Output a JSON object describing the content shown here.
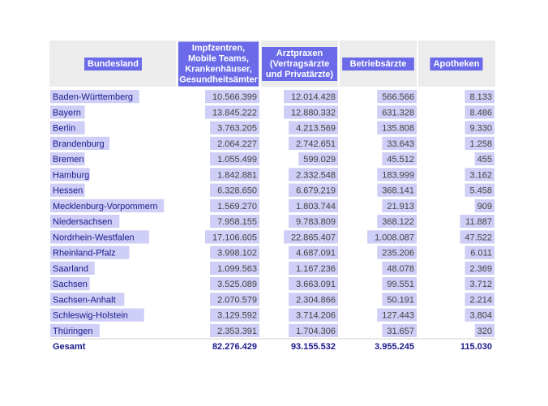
{
  "chart_data": {
    "type": "table",
    "columns": [
      "Bundesland",
      "Impfzentren, Mobile Teams, Krankenhäuser, Gesundheitsämter",
      "Arztpraxen (Vertragsärzte und Privatärzte)",
      "Betriebsärzte",
      "Apotheken"
    ],
    "header_lines": [
      [
        "Bundesland"
      ],
      [
        "Impfzentren,",
        "Mobile Teams,",
        "Krankenhäuser,",
        "Gesundheitsämter"
      ],
      [
        "Arztpraxen",
        "(Vertragsärzte",
        "und Privatärzte)"
      ],
      [
        "Betriebsärzte"
      ],
      [
        "Apotheken"
      ]
    ],
    "rows": [
      [
        "Baden-Württemberg",
        "10.566.399",
        "12.014.428",
        "566.566",
        "8.133"
      ],
      [
        "Bayern",
        "13.845.222",
        "12.880.332",
        "631.328",
        "8.486"
      ],
      [
        "Berlin",
        "3.763.205",
        "4.213.569",
        "135.808",
        "9.330"
      ],
      [
        "Brandenburg",
        "2.064.227",
        "2.742.651",
        "33.643",
        "1.258"
      ],
      [
        "Bremen",
        "1.055.499",
        "599.029",
        "45.512",
        "455"
      ],
      [
        "Hamburg",
        "1.842.881",
        "2.332.548",
        "183.999",
        "3.162"
      ],
      [
        "Hessen",
        "6.328.650",
        "6.679.219",
        "368.141",
        "5.458"
      ],
      [
        "Mecklenburg-Vorpommern",
        "1.569.270",
        "1.803.744",
        "21.913",
        "909"
      ],
      [
        "Niedersachsen",
        "7.958.155",
        "9.783.809",
        "368.122",
        "11.887"
      ],
      [
        "Nordrhein-Westfalen",
        "17.106.605",
        "22.865.407",
        "1.008.087",
        "47.522"
      ],
      [
        "Rheinland-Pfalz",
        "3.998.102",
        "4.687.091",
        "235.206",
        "6.011"
      ],
      [
        "Saarland",
        "1.099.563",
        "1.167.236",
        "48.078",
        "2.369"
      ],
      [
        "Sachsen",
        "3.525.089",
        "3.663.091",
        "99.551",
        "3.712"
      ],
      [
        "Sachsen-Anhalt",
        "2.070.579",
        "2.304.866",
        "50.191",
        "2.214"
      ],
      [
        "Schleswig-Holstein",
        "3.129.592",
        "3.714.206",
        "127.443",
        "3.804"
      ],
      [
        "Thüringen",
        "2.353.391",
        "1.704.306",
        "31.657",
        "320"
      ]
    ],
    "total_row": [
      "Gesamt",
      "82.276.429",
      "93.155.532",
      "3.955.245",
      "115.030"
    ],
    "colors": {
      "header_bg": "#ececec",
      "label_highlight": "#6b6bea",
      "cell_highlight": "#c9c9f5",
      "cell_text": "#444444",
      "label_text": "#1a1a8c",
      "header_text": "#ffffff"
    }
  }
}
